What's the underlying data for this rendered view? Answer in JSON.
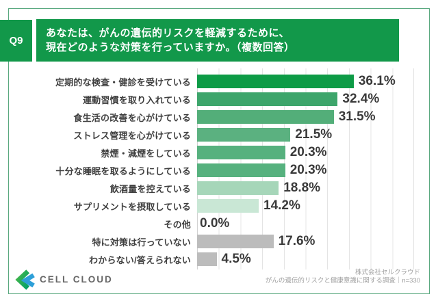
{
  "question": {
    "badge": "Q9",
    "line1": "あなたは、がんの遺伝的リスクを軽減するために、",
    "line2": "現在どのような対策を行っていますか。（複数回答）"
  },
  "chart_data": {
    "type": "bar",
    "orientation": "horizontal",
    "unit": "%",
    "xlim": [
      0,
      50
    ],
    "gridline_step": 5,
    "grid": true,
    "categories": [
      "定期的な検査・健診を受けている",
      "運動習慣を取り入れている",
      "食生活の改善を心がけている",
      "ストレス管理を心がけている",
      "禁煙・減煙をしている",
      "十分な睡眠を取るようにしている",
      "飲酒量を控えている",
      "サプリメントを摂取している",
      "その他",
      "特に対策は行っていない",
      "わからない/答えられない"
    ],
    "values": [
      36.1,
      32.4,
      31.5,
      21.5,
      20.3,
      20.3,
      18.8,
      14.2,
      0.0,
      17.6,
      4.5
    ],
    "value_labels": [
      "36.1%",
      "32.4%",
      "31.5%",
      "21.5%",
      "20.3%",
      "20.3%",
      "18.8%",
      "14.2%",
      "0.0%",
      "17.6%",
      "4.5%"
    ],
    "bar_colors": [
      "#0d9b46",
      "#3da56b",
      "#53ae79",
      "#5bb180",
      "#56b17e",
      "#56b17e",
      "#a6d6b9",
      "#c9e7d5",
      "transparent",
      "#bcbcbc",
      "#bcbcbc"
    ]
  },
  "footer": {
    "brand": "CELL CLOUD",
    "company": "株式会社セルクラウド",
    "survey": "がんの遺伝的リスクと健康意識に関する調査｜n=330"
  },
  "colors": {
    "header_green": "#12984a",
    "frame_border": "#58a87e",
    "gridline": "#e4e4e4",
    "neutral_bar": "#bcbcbc",
    "label_text": "#3f3f3f",
    "value_text": "#3a3a3a",
    "logo_green": "#45b649",
    "logo_blue": "#2d9fd8"
  }
}
